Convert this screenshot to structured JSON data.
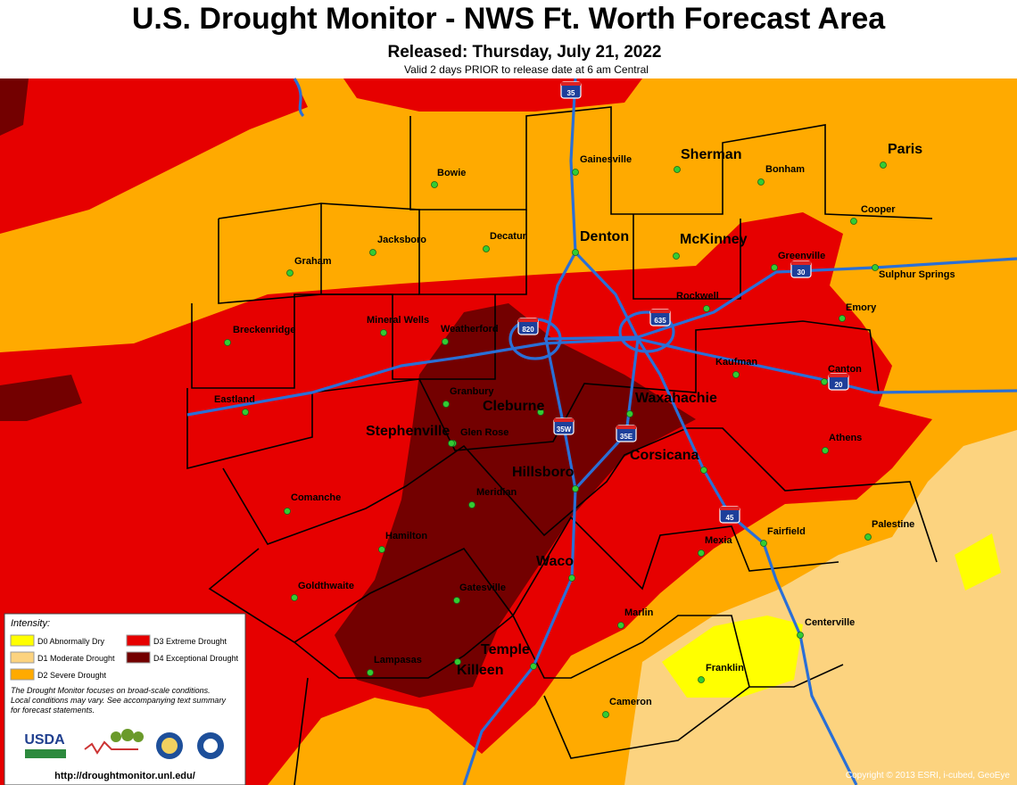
{
  "header": {
    "title": "U.S. Drought Monitor - NWS Ft. Worth Forecast Area",
    "released": "Released: Thursday, July 21, 2022",
    "valid": "Valid 2 days PRIOR to release date at 6 am Central"
  },
  "cities": [
    "Bowie",
    "Gainesville",
    "Sherman",
    "Bonham",
    "Paris",
    "Cooper",
    "Jacksboro",
    "Decatur",
    "Denton",
    "McKinney",
    "Graham",
    "Greenville",
    "Sulphur Springs",
    "Rockwell",
    "Emory",
    "Mineral Wells",
    "Weatherford",
    "Breckenridge",
    "Kaufman",
    "Canton",
    "Granbury",
    "Eastland",
    "Cleburne",
    "Waxahachie",
    "Glen Rose",
    "Stephenville",
    "Athens",
    "Hillsboro",
    "Corsicana",
    "Meridian",
    "Comanche",
    "Palestine",
    "Hamilton",
    "Mexia",
    "Fairfield",
    "Waco",
    "Goldthwaite",
    "Gatesville",
    "Marlin",
    "Centerville",
    "Temple",
    "Franklin",
    "Lampasas",
    "Killeen",
    "Cameron"
  ],
  "highways": [
    "35",
    "820",
    "635",
    "30",
    "20",
    "35W",
    "35E",
    "45"
  ],
  "legend": {
    "title": "Intensity:",
    "items": [
      {
        "label": "D0 Abnormally Dry",
        "color": "#ffff00"
      },
      {
        "label": "D1 Moderate Drought",
        "color": "#fcd37f"
      },
      {
        "label": "D2 Severe Drought",
        "color": "#ffaa00"
      },
      {
        "label": "D3 Extreme Drought",
        "color": "#e60000"
      },
      {
        "label": "D4 Exceptional Drought",
        "color": "#730000"
      }
    ],
    "note": [
      "The Drought Monitor focuses on broad-scale conditions.",
      "Local conditions may vary. See accompanying text summary",
      "for forecast statements."
    ],
    "logo": "USDA",
    "url": "http://droughtmonitor.unl.edu/"
  },
  "copyright": "Copyright © 2013 ESRI, i-cubed, GeoEye"
}
